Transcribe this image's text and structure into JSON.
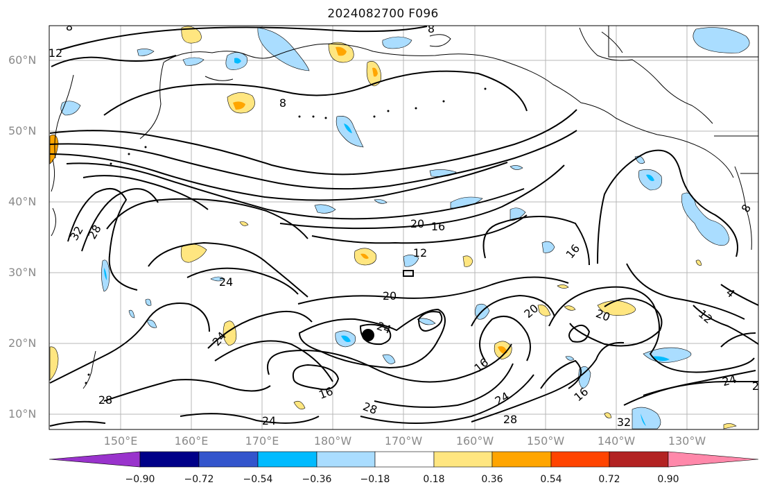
{
  "title": "2024082700 F096",
  "lat_labels": [
    "60°N",
    "50°N",
    "40°N",
    "30°N",
    "20°N",
    "10°N"
  ],
  "lon_labels": [
    "150°E",
    "160°E",
    "170°E",
    "180°W",
    "170°W",
    "160°W",
    "150°W",
    "140°W",
    "130°W"
  ],
  "colorbar": {
    "ticks": [
      "−0.90",
      "−0.72",
      "−0.54",
      "−0.36",
      "−0.18",
      "0.18",
      "0.36",
      "0.54",
      "0.72",
      "0.90"
    ],
    "colors": [
      "#9933cc",
      "#000088",
      "#3355cc",
      "#00bbff",
      "#aaddff",
      "#ffffff",
      "#ffe680",
      "#ffa500",
      "#ff4400",
      "#b22222",
      "#ff88aa"
    ]
  },
  "contour_labels": [
    "8",
    "12",
    "8",
    "8",
    "20",
    "16",
    "12",
    "32",
    "28",
    "24",
    "20",
    "24",
    "24",
    "16",
    "20",
    "20",
    "16",
    "24",
    "28",
    "28",
    "24",
    "16",
    "24",
    "28",
    "32",
    "2",
    "16",
    "12",
    "4",
    "8"
  ],
  "marker": "storm-center-dot"
}
